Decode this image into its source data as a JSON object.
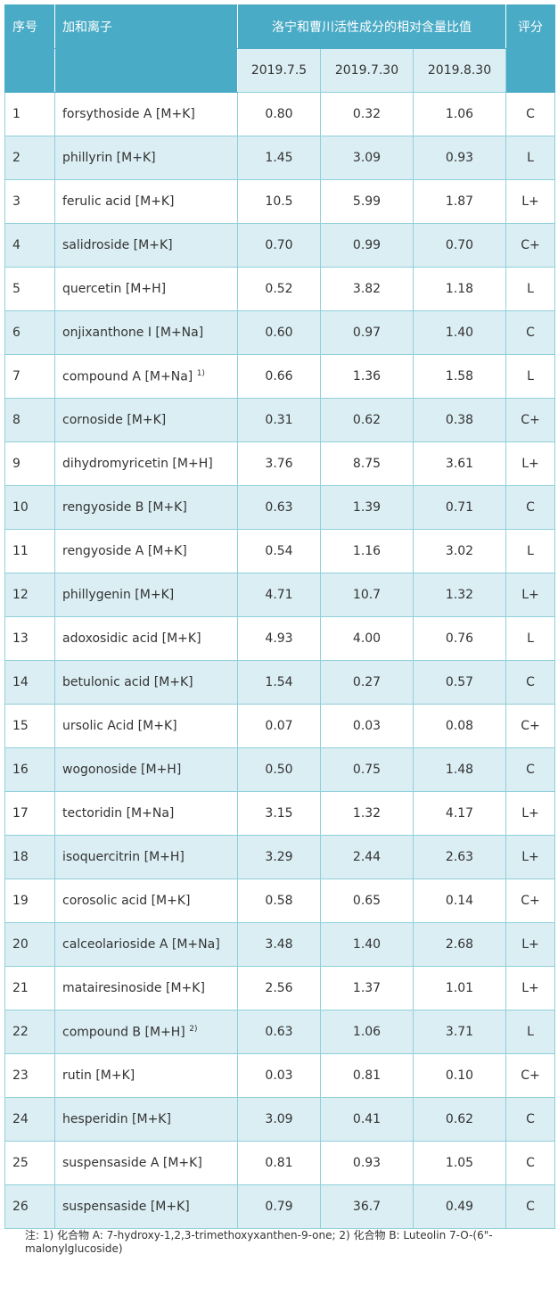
{
  "header": {
    "no": "序号",
    "ion": "加和离子",
    "group": "洛宁和曹川活性成分的相对含量比值",
    "score": "评分",
    "dates": [
      "2019.7.5",
      "2019.7.30",
      "2019.8.30"
    ]
  },
  "rows": [
    {
      "no": "1",
      "name": "forsythoside A [M+K]",
      "sup": "",
      "v": [
        "0.80",
        "0.32",
        "1.06"
      ],
      "s": "C"
    },
    {
      "no": "2",
      "name": "phillyrin [M+K]",
      "sup": "",
      "v": [
        "1.45",
        "3.09",
        "0.93"
      ],
      "s": "L"
    },
    {
      "no": "3",
      "name": "ferulic acid [M+K]",
      "sup": "",
      "v": [
        "10.5",
        "5.99",
        "1.87"
      ],
      "s": "L+"
    },
    {
      "no": "4",
      "name": "salidroside [M+K]",
      "sup": "",
      "v": [
        "0.70",
        "0.99",
        "0.70"
      ],
      "s": "C+"
    },
    {
      "no": "5",
      "name": "quercetin [M+H]",
      "sup": "",
      "v": [
        "0.52",
        "3.82",
        "1.18"
      ],
      "s": "L"
    },
    {
      "no": "6",
      "name": "onjixanthone I [M+Na]",
      "sup": "",
      "v": [
        "0.60",
        "0.97",
        "1.40"
      ],
      "s": "C"
    },
    {
      "no": "7",
      "name": "compound A [M+Na]",
      "sup": "1)",
      "v": [
        "0.66",
        "1.36",
        "1.58"
      ],
      "s": "L"
    },
    {
      "no": "8",
      "name": "cornoside [M+K]",
      "sup": "",
      "v": [
        "0.31",
        "0.62",
        "0.38"
      ],
      "s": "C+"
    },
    {
      "no": "9",
      "name": "dihydromyricetin [M+H]",
      "sup": "",
      "v": [
        "3.76",
        "8.75",
        "3.61"
      ],
      "s": "L+"
    },
    {
      "no": "10",
      "name": "rengyoside B [M+K]",
      "sup": "",
      "v": [
        "0.63",
        "1.39",
        "0.71"
      ],
      "s": "C"
    },
    {
      "no": "11",
      "name": "rengyoside A [M+K]",
      "sup": "",
      "v": [
        "0.54",
        "1.16",
        "3.02"
      ],
      "s": "L"
    },
    {
      "no": "12",
      "name": "phillygenin [M+K]",
      "sup": "",
      "v": [
        "4.71",
        "10.7",
        "1.32"
      ],
      "s": "L+"
    },
    {
      "no": "13",
      "name": "adoxosidic acid [M+K]",
      "sup": "",
      "v": [
        "4.93",
        "4.00",
        "0.76"
      ],
      "s": "L"
    },
    {
      "no": "14",
      "name": "betulonic acid [M+K]",
      "sup": "",
      "v": [
        "1.54",
        "0.27",
        "0.57"
      ],
      "s": "C"
    },
    {
      "no": "15",
      "name": "ursolic Acid [M+K]",
      "sup": "",
      "v": [
        "0.07",
        "0.03",
        "0.08"
      ],
      "s": "C+"
    },
    {
      "no": "16",
      "name": "wogonoside [M+H]",
      "sup": "",
      "v": [
        "0.50",
        "0.75",
        "1.48"
      ],
      "s": "C"
    },
    {
      "no": "17",
      "name": "tectoridin [M+Na]",
      "sup": "",
      "v": [
        "3.15",
        "1.32",
        "4.17"
      ],
      "s": "L+"
    },
    {
      "no": "18",
      "name": "isoquercitrin [M+H]",
      "sup": "",
      "v": [
        "3.29",
        "2.44",
        "2.63"
      ],
      "s": "L+"
    },
    {
      "no": "19",
      "name": "corosolic acid [M+K]",
      "sup": "",
      "v": [
        "0.58",
        "0.65",
        "0.14"
      ],
      "s": "C+"
    },
    {
      "no": "20",
      "name": "calceolarioside A [M+Na]",
      "sup": "",
      "v": [
        "3.48",
        "1.40",
        "2.68"
      ],
      "s": "L+"
    },
    {
      "no": "21",
      "name": "matairesinoside [M+K]",
      "sup": "",
      "v": [
        "2.56",
        "1.37",
        "1.01"
      ],
      "s": "L+"
    },
    {
      "no": "22",
      "name": "compound B [M+H]",
      "sup": "2)",
      "v": [
        "0.63",
        "1.06",
        "3.71"
      ],
      "s": "L"
    },
    {
      "no": "23",
      "name": "rutin [M+K]",
      "sup": "",
      "v": [
        "0.03",
        "0.81",
        "0.10"
      ],
      "s": "C+"
    },
    {
      "no": "24",
      "name": "hesperidin [M+K]",
      "sup": "",
      "v": [
        "3.09",
        "0.41",
        "0.62"
      ],
      "s": "C"
    },
    {
      "no": "25",
      "name": "suspensaside A [M+K]",
      "sup": "",
      "v": [
        "0.81",
        "0.93",
        "1.05"
      ],
      "s": "C"
    },
    {
      "no": "26",
      "name": "suspensaside [M+K]",
      "sup": "",
      "v": [
        "0.79",
        "36.7",
        "0.49"
      ],
      "s": "C"
    }
  ],
  "note": "注: 1)  化合物 A: 7-hydroxy-1,2,3-trimethoxyxanthen-9-one; 2)  化合物 B: Luteolin 7-O-(6\"-malonylglucoside)"
}
